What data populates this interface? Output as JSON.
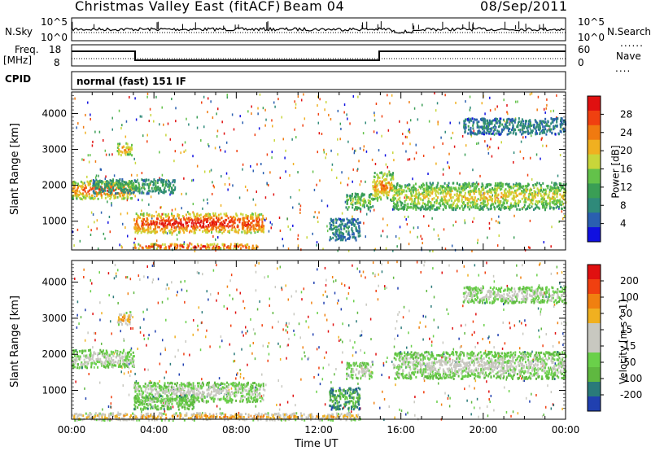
{
  "header": {
    "station": "Christmas Valley East (fitACF)",
    "beam": "Beam 04",
    "date": "08/Sep/2011"
  },
  "top_panels": {
    "nsky_label": "N.Sky",
    "nsearch_label": "N.Search",
    "nsky_ticks": [
      "10^5",
      "10^0"
    ],
    "nsearch_ticks": [
      "10^5",
      "10^0"
    ],
    "freq_label": "Freq.",
    "freq_unit": "[MHz]",
    "freq_ticks": [
      "18",
      "8"
    ],
    "nave_label": "Nave",
    "nave_ticks": [
      "60",
      "0"
    ],
    "cpid_label": "CPID",
    "cpid_value": "normal (fast) 151 IF"
  },
  "colors": {
    "power_scale": [
      "#1010e0",
      "#2a5fb0",
      "#2f8a7a",
      "#3a9e55",
      "#63c24a",
      "#c8d63a",
      "#f0b020",
      "#f07a10",
      "#f04010",
      "#e01010"
    ],
    "velocity_scale": [
      "#2040b0",
      "#2a7a7a",
      "#5fb840",
      "#6ad04a",
      "#c8c8c0",
      "#c8c8c0",
      "#f0b020",
      "#f08010",
      "#f04010",
      "#e01010"
    ]
  },
  "chart_data": [
    {
      "type": "heatmap",
      "name": "Power panel",
      "ylabel": "Slant Range [km]",
      "ylim": [
        200,
        4600
      ],
      "yticks": [
        "4000",
        "3000",
        "2000",
        "1000"
      ],
      "xlim": [
        "00:00",
        "24:00"
      ],
      "colorbar_label": "Power [dB]",
      "colorbar_ticks": [
        "28",
        "24",
        "20",
        "16",
        "12",
        "8",
        "4"
      ],
      "regions": [
        {
          "t0": 0.0,
          "t1": 3.0,
          "r0": 1650,
          "r1": 2150,
          "level": 7
        },
        {
          "t0": 2.2,
          "t1": 2.9,
          "r0": 2850,
          "r1": 3200,
          "level": 6
        },
        {
          "t0": 3.0,
          "t1": 9.3,
          "r0": 700,
          "r1": 1250,
          "level": 8
        },
        {
          "t0": 3.0,
          "t1": 9.0,
          "r0": 250,
          "r1": 400,
          "level": 8
        },
        {
          "t0": 1.0,
          "t1": 5.0,
          "r0": 1800,
          "r1": 2200,
          "level": 3
        },
        {
          "t0": 13.3,
          "t1": 14.6,
          "r0": 1350,
          "r1": 1800,
          "level": 4
        },
        {
          "t0": 14.6,
          "t1": 15.6,
          "r0": 1600,
          "r1": 2400,
          "level": 6
        },
        {
          "t0": 15.6,
          "t1": 24.0,
          "r0": 1350,
          "r1": 2100,
          "level": 5
        },
        {
          "t0": 19.0,
          "t1": 24.0,
          "r0": 3450,
          "r1": 3900,
          "level": 2
        },
        {
          "t0": 12.5,
          "t1": 14.0,
          "r0": 500,
          "r1": 1100,
          "level": 2
        }
      ]
    },
    {
      "type": "heatmap",
      "name": "Velocity panel",
      "ylabel": "Slant Range [km]",
      "ylim": [
        200,
        4600
      ],
      "yticks": [
        "4000",
        "3000",
        "2000",
        "1000"
      ],
      "xlim": [
        "00:00",
        "24:00"
      ],
      "xlabel": "Time UT",
      "xticks": [
        "00:00",
        "04:00",
        "08:00",
        "12:00",
        "16:00",
        "20:00",
        "00:00"
      ],
      "colorbar_label": "Velocity [m s^-1]",
      "colorbar_ticks": [
        "200",
        "100",
        "50",
        "15",
        "-15",
        "-50",
        "-100",
        "-200"
      ],
      "regions": [
        {
          "t0": 0.0,
          "t1": 3.0,
          "r0": 1650,
          "r1": 2150,
          "level": 4
        },
        {
          "t0": 2.2,
          "t1": 2.9,
          "r0": 2850,
          "r1": 3200,
          "level": 6
        },
        {
          "t0": 3.0,
          "t1": 9.3,
          "r0": 700,
          "r1": 1250,
          "level": 4
        },
        {
          "t0": 3.0,
          "t1": 6.0,
          "r0": 500,
          "r1": 900,
          "level": 3
        },
        {
          "t0": 0.0,
          "t1": 14.0,
          "r0": 200,
          "r1": 400,
          "level": 6
        },
        {
          "t0": 13.3,
          "t1": 14.6,
          "r0": 1350,
          "r1": 1800,
          "level": 4
        },
        {
          "t0": 15.6,
          "t1": 24.0,
          "r0": 1350,
          "r1": 2100,
          "level": 4
        },
        {
          "t0": 12.5,
          "t1": 14.0,
          "r0": 500,
          "r1": 1100,
          "level": 2
        },
        {
          "t0": 19.0,
          "t1": 24.0,
          "r0": 3450,
          "r1": 3900,
          "level": 4
        }
      ]
    }
  ]
}
